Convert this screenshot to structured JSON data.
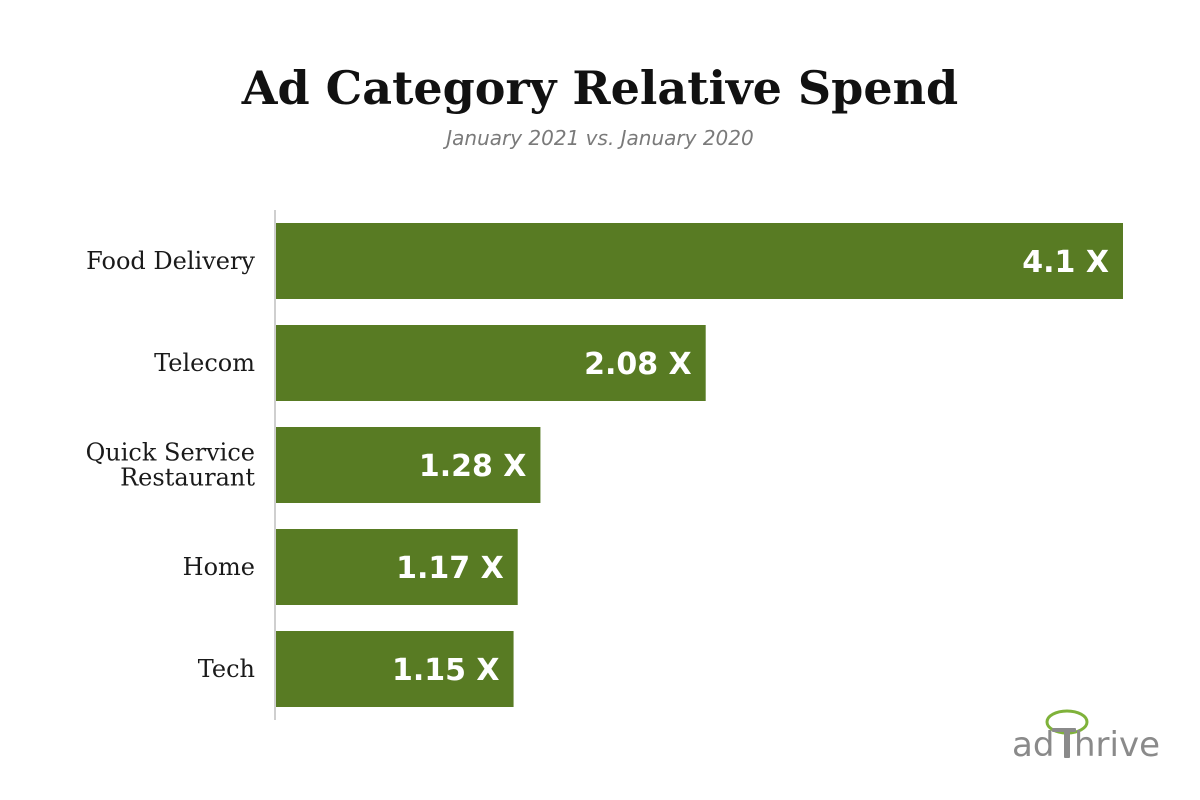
{
  "chart_data": {
    "type": "bar",
    "orientation": "horizontal",
    "title": "Ad Category Relative Spend",
    "subtitle": "January 2021 vs. January 2020",
    "categories": [
      [
        "Food Delivery"
      ],
      [
        "Telecom"
      ],
      [
        "Quick Service",
        "Restaurant"
      ],
      [
        "Home"
      ],
      [
        "Tech"
      ]
    ],
    "values": [
      4.1,
      2.08,
      1.28,
      1.17,
      1.15
    ],
    "data_labels": [
      "4.1 X",
      "2.08 X",
      "1.28 X",
      "1.17 X",
      "1.15 X"
    ],
    "xlim": [
      0,
      4.1
    ],
    "xlabel": "",
    "ylabel": "",
    "grid": false,
    "legend": "none",
    "bar_color": "#587b23"
  },
  "logo": {
    "text_left": "ad",
    "text_right": "hrive",
    "accent_color": "#7fb23a"
  }
}
